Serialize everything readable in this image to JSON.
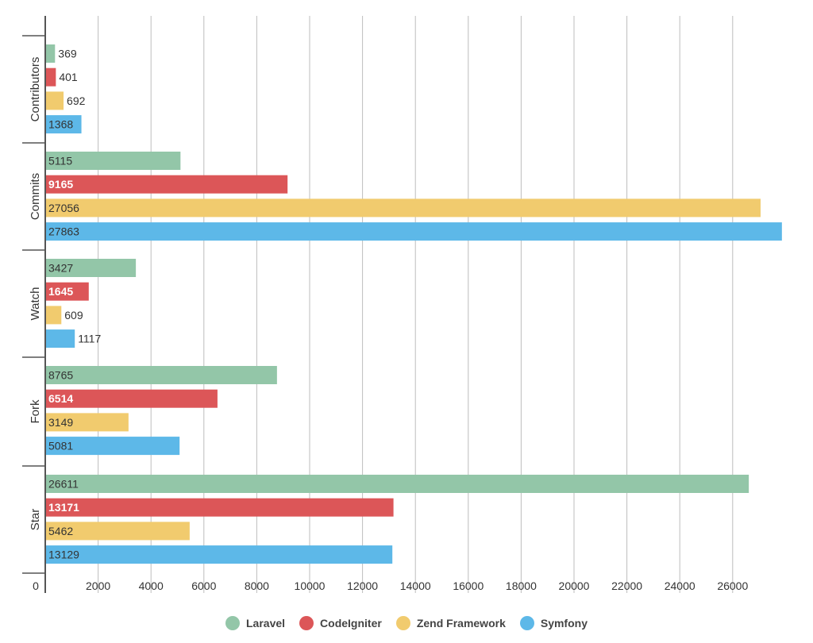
{
  "chart_data": {
    "type": "bar",
    "orientation": "horizontal",
    "title": "",
    "xlabel": "",
    "ylabel": "",
    "xlim": [
      0,
      28000
    ],
    "x_ticks": [
      0,
      2000,
      4000,
      6000,
      8000,
      10000,
      12000,
      14000,
      16000,
      18000,
      20000,
      22000,
      24000,
      26000
    ],
    "grid": true,
    "legend_position": "bottom",
    "categories": [
      "Contributors",
      "Commits",
      "Watch",
      "Fork",
      "Star"
    ],
    "series": [
      {
        "name": "Laravel",
        "color": "#93c6a8",
        "values": [
          369,
          5115,
          3427,
          8765,
          26611
        ]
      },
      {
        "name": "CodeIgniter",
        "color": "#dc5658",
        "values": [
          401,
          9165,
          1645,
          6514,
          13171
        ]
      },
      {
        "name": "Zend Framework",
        "color": "#f1cb6e",
        "values": [
          692,
          27056,
          609,
          3149,
          5462
        ]
      },
      {
        "name": "Symfony",
        "color": "#5db8e8",
        "values": [
          1368,
          27863,
          1117,
          5081,
          13129
        ]
      }
    ]
  }
}
